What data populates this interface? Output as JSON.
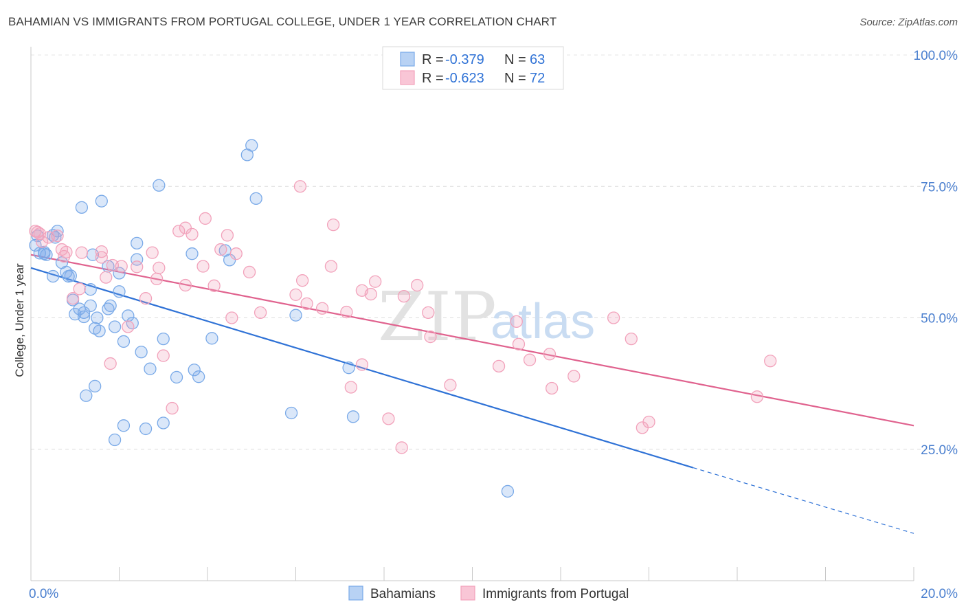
{
  "title": "BAHAMIAN VS IMMIGRANTS FROM PORTUGAL COLLEGE, UNDER 1 YEAR CORRELATION CHART",
  "source": "Source: ZipAtlas.com",
  "watermark": {
    "zip": "ZIP",
    "atlas": "atlas"
  },
  "chart_data": {
    "type": "scatter",
    "ylabel": "College, Under 1 year",
    "xlim": [
      0,
      20
    ],
    "ylim": [
      0,
      100
    ],
    "x_tick_labels": [
      "0.0%",
      "20.0%"
    ],
    "y_ticks": [
      25,
      50,
      75,
      100
    ],
    "y_tick_labels": [
      "25.0%",
      "50.0%",
      "75.0%",
      "100.0%"
    ],
    "grid": true,
    "legend": {
      "placement": "top-center",
      "entries": [
        {
          "r_label": "R = ",
          "r_value": "-0.379",
          "n_label": "N = ",
          "n_value": "63"
        },
        {
          "r_label": "R = ",
          "r_value": "-0.623",
          "n_label": "N = ",
          "n_value": "72"
        }
      ]
    },
    "series": [
      {
        "name": "Bahamians",
        "color": "#7aaae8",
        "line_color": "#2f72d6",
        "trend": {
          "x0": 0,
          "y0": 59.5,
          "x1": 15.0,
          "y1": 21.5,
          "dash_x1": 20,
          "dash_y1": 9.0
        },
        "points": [
          [
            0.1,
            63.8
          ],
          [
            0.15,
            65.6
          ],
          [
            0.2,
            62.3
          ],
          [
            0.3,
            62.2
          ],
          [
            0.35,
            62.0
          ],
          [
            0.5,
            65.7
          ],
          [
            0.6,
            66.5
          ],
          [
            0.55,
            65.3
          ],
          [
            0.7,
            60.5
          ],
          [
            0.5,
            57.9
          ],
          [
            0.8,
            58.7
          ],
          [
            0.85,
            57.9
          ],
          [
            0.9,
            58.0
          ],
          [
            1.15,
            71.0
          ],
          [
            1.6,
            72.2
          ],
          [
            1.4,
            62.0
          ],
          [
            1.75,
            59.8
          ],
          [
            2.0,
            58.5
          ],
          [
            2.4,
            64.2
          ],
          [
            2.4,
            61.1
          ],
          [
            0.95,
            53.4
          ],
          [
            1.35,
            55.4
          ],
          [
            1.8,
            52.3
          ],
          [
            2.0,
            55.0
          ],
          [
            1.0,
            50.7
          ],
          [
            1.1,
            51.7
          ],
          [
            1.2,
            50.2
          ],
          [
            1.35,
            52.3
          ],
          [
            1.5,
            50.0
          ],
          [
            1.75,
            51.7
          ],
          [
            1.9,
            48.3
          ],
          [
            1.55,
            47.5
          ],
          [
            2.2,
            50.4
          ],
          [
            2.1,
            45.5
          ],
          [
            2.5,
            43.5
          ],
          [
            3.0,
            46.0
          ],
          [
            2.7,
            40.3
          ],
          [
            3.3,
            38.7
          ],
          [
            3.7,
            40.1
          ],
          [
            3.8,
            38.8
          ],
          [
            4.1,
            46.1
          ],
          [
            3.65,
            62.2
          ],
          [
            4.4,
            62.8
          ],
          [
            4.5,
            61.0
          ],
          [
            1.45,
            37.0
          ],
          [
            1.25,
            35.2
          ],
          [
            2.1,
            29.5
          ],
          [
            2.6,
            28.9
          ],
          [
            3.0,
            30.0
          ],
          [
            1.9,
            26.8
          ],
          [
            2.9,
            75.2
          ],
          [
            4.9,
            81.0
          ],
          [
            5.0,
            82.8
          ],
          [
            5.1,
            72.7
          ],
          [
            5.9,
            31.9
          ],
          [
            6.0,
            50.5
          ],
          [
            7.2,
            40.5
          ],
          [
            7.3,
            31.2
          ],
          [
            10.8,
            17.0
          ],
          [
            2.3,
            49.0
          ],
          [
            1.45,
            48.0
          ],
          [
            1.2,
            51.0
          ],
          [
            0.3,
            62.5
          ]
        ]
      },
      {
        "name": "Immigrants from Portugal",
        "color": "#f2a2bb",
        "line_color": "#e0628e",
        "trend": {
          "x0": 0,
          "y0": 62.0,
          "x1": 20,
          "y1": 29.5
        },
        "points": [
          [
            0.1,
            66.5
          ],
          [
            0.15,
            66.3
          ],
          [
            0.2,
            66.0
          ],
          [
            0.25,
            64.5
          ],
          [
            0.4,
            65.3
          ],
          [
            0.6,
            65.6
          ],
          [
            0.7,
            63.0
          ],
          [
            0.75,
            61.7
          ],
          [
            0.8,
            62.5
          ],
          [
            1.15,
            62.4
          ],
          [
            1.6,
            61.5
          ],
          [
            1.6,
            62.6
          ],
          [
            1.85,
            60.0
          ],
          [
            2.05,
            59.8
          ],
          [
            2.4,
            59.7
          ],
          [
            2.75,
            62.4
          ],
          [
            2.9,
            59.5
          ],
          [
            2.85,
            57.4
          ],
          [
            1.7,
            57.7
          ],
          [
            1.1,
            55.5
          ],
          [
            0.95,
            53.7
          ],
          [
            2.6,
            53.7
          ],
          [
            3.35,
            66.5
          ],
          [
            3.5,
            67.1
          ],
          [
            3.65,
            65.9
          ],
          [
            3.9,
            59.8
          ],
          [
            3.95,
            68.9
          ],
          [
            3.5,
            56.2
          ],
          [
            4.15,
            56.1
          ],
          [
            4.3,
            63.0
          ],
          [
            4.45,
            65.7
          ],
          [
            4.65,
            62.2
          ],
          [
            4.95,
            58.7
          ],
          [
            4.55,
            50.0
          ],
          [
            5.2,
            51.0
          ],
          [
            6.0,
            54.4
          ],
          [
            6.15,
            57.1
          ],
          [
            6.1,
            75.0
          ],
          [
            6.25,
            52.7
          ],
          [
            6.6,
            51.8
          ],
          [
            6.85,
            67.7
          ],
          [
            6.8,
            59.8
          ],
          [
            7.15,
            51.1
          ],
          [
            7.25,
            36.8
          ],
          [
            7.5,
            55.2
          ],
          [
            7.5,
            41.1
          ],
          [
            7.7,
            54.5
          ],
          [
            7.8,
            56.9
          ],
          [
            8.1,
            30.8
          ],
          [
            8.4,
            25.3
          ],
          [
            8.45,
            54.1
          ],
          [
            8.75,
            56.2
          ],
          [
            9.0,
            51.0
          ],
          [
            9.05,
            46.4
          ],
          [
            9.5,
            37.2
          ],
          [
            10.6,
            40.8
          ],
          [
            11.0,
            49.3
          ],
          [
            11.05,
            45.0
          ],
          [
            11.3,
            42.0
          ],
          [
            11.8,
            36.6
          ],
          [
            11.75,
            43.1
          ],
          [
            12.3,
            38.9
          ],
          [
            13.2,
            50.0
          ],
          [
            13.6,
            46.0
          ],
          [
            13.85,
            29.1
          ],
          [
            14.0,
            30.2
          ],
          [
            16.45,
            35.0
          ],
          [
            16.75,
            41.8
          ],
          [
            1.8,
            41.3
          ],
          [
            2.2,
            48.3
          ],
          [
            3.2,
            32.8
          ],
          [
            3.0,
            42.8
          ]
        ]
      }
    ]
  }
}
